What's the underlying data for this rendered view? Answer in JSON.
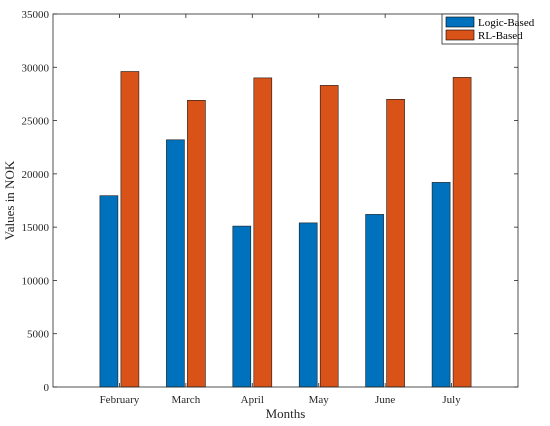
{
  "chart_data": {
    "type": "bar",
    "title": "",
    "xlabel": "Months",
    "ylabel": "Values in NOK",
    "categories": [
      "February",
      "March",
      "April",
      "May",
      "June",
      "July"
    ],
    "series": [
      {
        "name": "Logic-Based",
        "color": "#0072BD",
        "values": [
          17950,
          23200,
          15100,
          15400,
          16200,
          19200
        ]
      },
      {
        "name": "RL-Based",
        "color": "#D95319",
        "values": [
          29600,
          26900,
          29000,
          28300,
          27000,
          29050
        ]
      }
    ],
    "ylim": [
      0,
      35000
    ],
    "yticks": [
      0,
      5000,
      10000,
      15000,
      20000,
      25000,
      30000,
      35000
    ],
    "grid": false,
    "legend_position": "top-right"
  }
}
